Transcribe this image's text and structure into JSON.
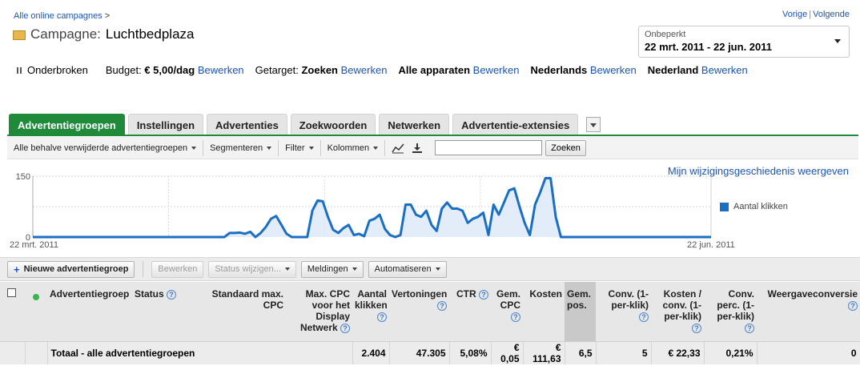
{
  "header": {
    "breadcrumb": "Alle online campagnes",
    "breadcrumb_sep": ">",
    "campaign_label": "Campagne:",
    "campaign_name": "Luchtbedplaza",
    "prev_link": "Vorige",
    "next_link": "Volgende",
    "date_caption": "Onbeperkt",
    "date_range": "22 mrt. 2011 - 22 jun. 2011"
  },
  "status": {
    "state": "Onderbroken",
    "budget_label": "Budget:",
    "budget_value": "€ 5,00/dag",
    "targeted_label": "Getarget:",
    "targeted_value": "Zoeken",
    "devices": "Alle apparaten",
    "language": "Nederlands",
    "location": "Nederland",
    "edit_label": "Bewerken"
  },
  "tabs": [
    {
      "label": "Advertentiegroepen",
      "active": true
    },
    {
      "label": "Instellingen"
    },
    {
      "label": "Advertenties"
    },
    {
      "label": "Zoekwoorden"
    },
    {
      "label": "Netwerken"
    },
    {
      "label": "Advertentie-extensies"
    }
  ],
  "toolbar": {
    "filter_scope": "Alle behalve verwijderde advertentiegroepen",
    "segment": "Segmenteren",
    "filter": "Filter",
    "columns": "Kolommen",
    "search_value": "",
    "search_button": "Zoeken"
  },
  "chart_link": "Mijn wijzigingsgeschiedenis weergeven",
  "chart_data": {
    "type": "line",
    "series": [
      {
        "name": "Aantal klikken",
        "values": [
          0,
          0,
          0,
          0,
          0,
          0,
          0,
          0,
          0,
          0,
          0,
          0,
          0,
          0,
          0,
          0,
          0,
          0,
          0,
          0,
          0,
          0,
          0,
          0,
          0,
          0,
          0,
          0,
          0,
          0,
          0,
          0,
          0,
          0,
          0,
          0,
          0,
          0,
          10,
          10,
          11,
          8,
          13,
          0,
          10,
          25,
          45,
          52,
          30,
          8,
          0,
          0,
          0,
          0,
          65,
          90,
          88,
          50,
          18,
          10,
          22,
          30,
          5,
          8,
          2,
          40,
          45,
          55,
          20,
          5,
          0,
          5,
          80,
          80,
          55,
          50,
          65,
          30,
          15,
          70,
          85,
          70,
          70,
          65,
          35,
          45,
          50,
          60,
          5,
          80,
          55,
          85,
          115,
          120,
          75,
          35,
          5,
          80,
          110,
          145,
          145,
          50,
          0,
          0,
          0,
          0,
          0,
          0,
          0,
          0,
          0,
          0,
          0,
          0,
          0,
          0,
          0,
          0,
          0,
          0,
          0,
          0,
          0,
          0,
          0,
          0,
          0,
          0,
          0,
          0,
          0,
          0
        ],
        "color": "#1a6fc4"
      }
    ],
    "x_start": "22 mrt. 2011",
    "x_end": "22 jun. 2011",
    "y_ticks": [
      "150",
      "0"
    ],
    "ylim": [
      0,
      150
    ],
    "grid": true,
    "legend": "right"
  },
  "actions": {
    "new_group": "Nieuwe advertentiegroep",
    "edit": "Bewerken",
    "status_change": "Status wijzigen...",
    "alerts": "Meldingen",
    "automate": "Automatiseren"
  },
  "table": {
    "headers": {
      "group": "Advertentiegroep",
      "status": "Status",
      "default_cpc": "Standaard max. CPC",
      "display_cpc": "Max. CPC voor het Display Netwerk",
      "clicks": "Aantal klikken",
      "impressions": "Vertoningen",
      "ctr": "CTR",
      "avg_cpc": "Gem. CPC",
      "cost": "Kosten",
      "avg_pos": "Gem. pos.",
      "conv": "Conv. (1-per-klik)",
      "cost_conv": "Kosten / conv. (1-per-klik)",
      "conv_rate": "Conv. perc. (1-per-klik)",
      "view_through": "Weergaveconversie"
    },
    "total_row": {
      "label": "Totaal - alle advertentiegroepen",
      "clicks": "2.404",
      "impressions": "47.305",
      "ctr": "5,08%",
      "avg_cpc": "€ 0,05",
      "cost": "€ 111,63",
      "avg_pos": "6,5",
      "conv": "5",
      "cost_conv": "€ 22,33",
      "conv_rate": "0,21%",
      "view_through": "0"
    }
  }
}
